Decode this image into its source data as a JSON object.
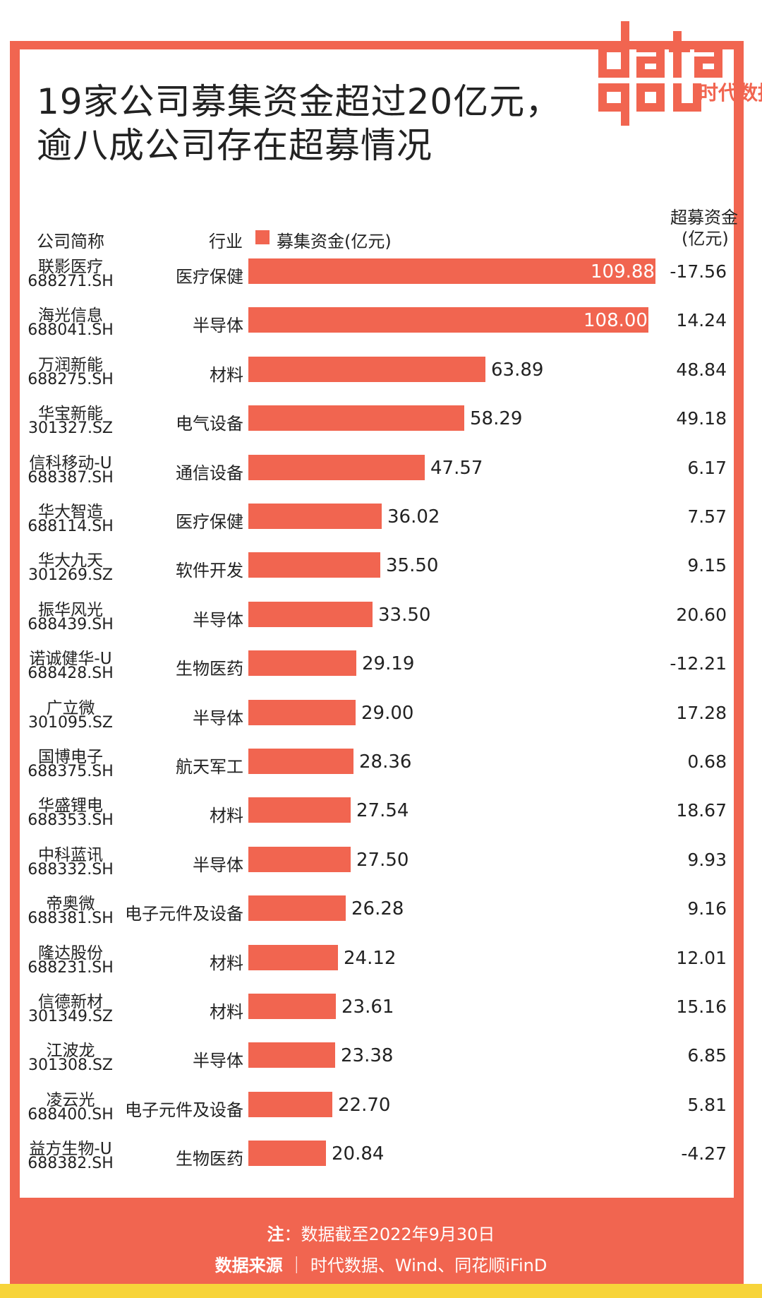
{
  "title": {
    "line1": "19家公司募集资金超过20亿元，",
    "line2": "逾八成公司存在超募情况"
  },
  "logo": {
    "mark": "data you",
    "text": "时代数据"
  },
  "headers": {
    "company": "公司简称",
    "industry": "行业",
    "legend": "募集资金(亿元)",
    "over_line1": "超募资金",
    "over_line2": "(亿元)"
  },
  "colors": {
    "bar": "#f16550",
    "frame": "#f16550",
    "band": "#f7d43a"
  },
  "chart_data": {
    "type": "bar",
    "orientation": "horizontal",
    "title": "19家公司募集资金超过20亿元，逾八成公司存在超募情况",
    "categories": [
      "联影医疗",
      "海光信息",
      "万润新能",
      "华宝新能",
      "信科移动-U",
      "华大智造",
      "华大九天",
      "振华风光",
      "诺诚健华-U",
      "广立微",
      "国博电子",
      "华盛锂电",
      "中科蓝讯",
      "帝奥微",
      "隆达股份",
      "信德新材",
      "江波龙",
      "凌云光",
      "益方生物-U"
    ],
    "codes": [
      "688271.SH",
      "688041.SH",
      "688275.SH",
      "301327.SZ",
      "688387.SH",
      "688114.SH",
      "301269.SZ",
      "688439.SH",
      "688428.SH",
      "301095.SZ",
      "688375.SH",
      "688353.SH",
      "688332.SH",
      "688381.SH",
      "688231.SH",
      "301349.SZ",
      "301308.SZ",
      "688400.SH",
      "688382.SH"
    ],
    "industries": [
      "医疗保健",
      "半导体",
      "材料",
      "电气设备",
      "通信设备",
      "医疗保健",
      "软件开发",
      "半导体",
      "生物医药",
      "半导体",
      "航天军工",
      "材料",
      "半导体",
      "电子元件及设备",
      "材料",
      "材料",
      "半导体",
      "电子元件及设备",
      "生物医药"
    ],
    "series": [
      {
        "name": "募集资金(亿元)",
        "values": [
          109.88,
          108.0,
          63.89,
          58.29,
          47.57,
          36.02,
          35.5,
          33.5,
          29.19,
          29.0,
          28.36,
          27.54,
          27.5,
          26.28,
          24.12,
          23.61,
          23.38,
          22.7,
          20.84
        ]
      }
    ],
    "value_labels": [
      "109.88",
      "108.00",
      "63.89",
      "58.29",
      "47.57",
      "36.02",
      "35.50",
      "33.50",
      "29.19",
      "29.00",
      "28.36",
      "27.54",
      "27.50",
      "26.28",
      "24.12",
      "23.61",
      "23.38",
      "22.70",
      "20.84"
    ],
    "over_raised_labels": [
      "-17.56",
      "14.24",
      "48.84",
      "49.18",
      "6.17",
      "7.57",
      "9.15",
      "20.60",
      "-12.21",
      "17.28",
      "0.68",
      "18.67",
      "9.93",
      "9.16",
      "12.01",
      "15.16",
      "6.85",
      "5.81",
      "-4.27"
    ],
    "over_raised": [
      -17.56,
      14.24,
      48.84,
      49.18,
      6.17,
      7.57,
      9.15,
      20.6,
      -12.21,
      17.28,
      0.68,
      18.67,
      9.93,
      9.16,
      12.01,
      15.16,
      6.85,
      5.81,
      -4.27
    ],
    "xlim": [
      0,
      110
    ]
  },
  "footer": {
    "note_label": "注",
    "note_text": "：数据截至2022年9月30日",
    "source_label": "数据来源",
    "source_text": "｜ 时代数据、Wind、同花顺iFinD"
  }
}
